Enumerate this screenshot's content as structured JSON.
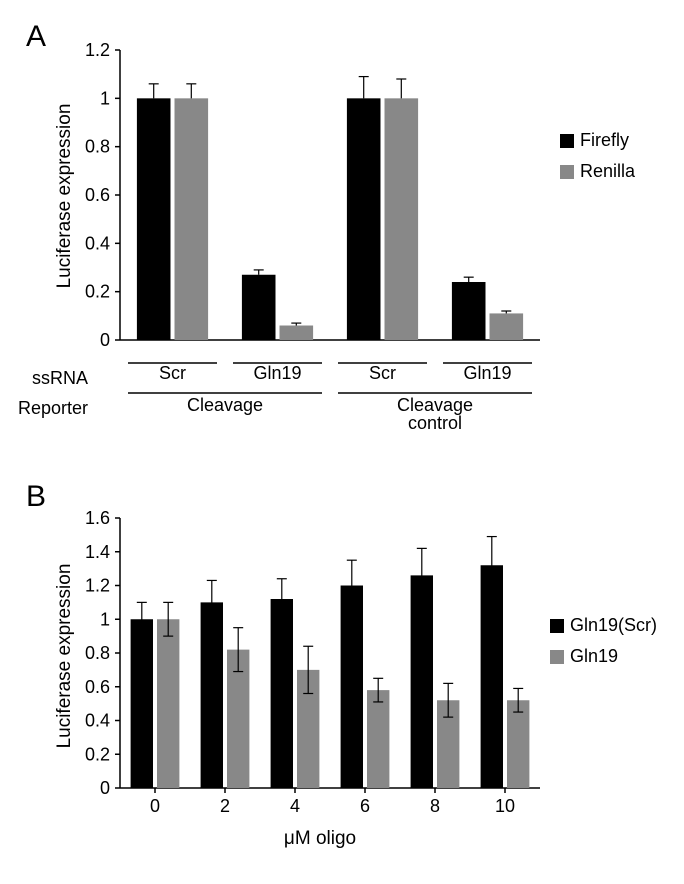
{
  "panelA": {
    "label": "A",
    "chart": {
      "type": "bar",
      "y_label": "Luciferase expression",
      "label_fontsize": 19,
      "ylim": [
        0,
        1.2
      ],
      "ytick_step": 0.2,
      "yticks": [
        0,
        0.2,
        0.4,
        0.6,
        0.8,
        1,
        1.2
      ],
      "groups": [
        {
          "reporter": "Cleavage",
          "ssrna": "Scr",
          "firefly": 1.0,
          "firefly_err": 0.06,
          "renilla": 1.0,
          "renilla_err": 0.06
        },
        {
          "reporter": "Cleavage",
          "ssrna": "Gln19",
          "firefly": 0.27,
          "firefly_err": 0.02,
          "renilla": 0.06,
          "renilla_err": 0.01
        },
        {
          "reporter": "Cleavage control",
          "ssrna": "Scr",
          "firefly": 1.0,
          "firefly_err": 0.09,
          "renilla": 1.0,
          "renilla_err": 0.08
        },
        {
          "reporter": "Cleavage control",
          "ssrna": "Gln19",
          "firefly": 0.24,
          "firefly_err": 0.02,
          "renilla": 0.11,
          "renilla_err": 0.01
        }
      ],
      "colors": {
        "firefly": "#000000",
        "renilla": "#888888"
      },
      "background_color": "#ffffff",
      "axis_color": "#000000",
      "bar_width": 0.4,
      "row_labels": [
        "ssRNA",
        "Reporter"
      ],
      "reporter_labels": [
        "Cleavage",
        "Cleavage\ncontrol"
      ],
      "ssrna_labels": [
        "Scr",
        "Gln19",
        "Scr",
        "Gln19"
      ]
    },
    "legend": {
      "items": [
        {
          "label": "Firefly",
          "color": "#000000"
        },
        {
          "label": "Renilla",
          "color": "#888888"
        }
      ]
    }
  },
  "panelB": {
    "label": "B",
    "chart": {
      "type": "bar",
      "y_label": "Luciferase expression",
      "x_label": "μM oligo",
      "label_fontsize": 19,
      "ylim": [
        0,
        1.6
      ],
      "ytick_step": 0.2,
      "yticks": [
        0,
        0.2,
        0.4,
        0.6,
        0.8,
        1,
        1.2,
        1.4,
        1.6
      ],
      "categories": [
        "0",
        "2",
        "4",
        "6",
        "8",
        "10"
      ],
      "series": [
        {
          "name": "Gln19(Scr)",
          "color": "#000000",
          "values": [
            1.0,
            1.1,
            1.12,
            1.2,
            1.26,
            1.32
          ],
          "err": [
            0.1,
            0.13,
            0.12,
            0.15,
            0.16,
            0.17
          ]
        },
        {
          "name": "Gln19",
          "color": "#888888",
          "values": [
            1.0,
            0.82,
            0.7,
            0.58,
            0.52,
            0.52
          ],
          "err": [
            0.1,
            0.13,
            0.14,
            0.07,
            0.1,
            0.07
          ]
        }
      ],
      "background_color": "#ffffff",
      "axis_color": "#000000",
      "bar_width": 0.4
    },
    "legend": {
      "items": [
        {
          "label": "Gln19(Scr)",
          "color": "#000000"
        },
        {
          "label": "Gln19",
          "color": "#888888"
        }
      ]
    }
  }
}
